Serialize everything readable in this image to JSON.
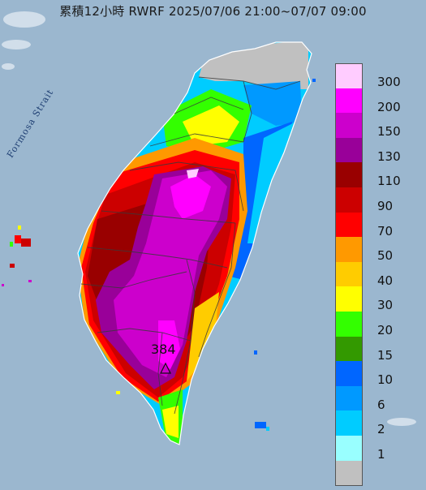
{
  "title": "累積12小時 RWRF 2025/07/06 21:00~07/07 09:00",
  "strait_label": "Formosa Strait",
  "max_marker": {
    "value": "384",
    "icon": "triangle-marker-icon"
  },
  "legend": [
    {
      "label": "300",
      "color": "#ffccff"
    },
    {
      "label": "200",
      "color": "#ff00ff"
    },
    {
      "label": "150",
      "color": "#cc00cc"
    },
    {
      "label": "130",
      "color": "#990099"
    },
    {
      "label": "110",
      "color": "#990000"
    },
    {
      "label": "90",
      "color": "#cc0000"
    },
    {
      "label": "70",
      "color": "#ff0000"
    },
    {
      "label": "50",
      "color": "#ff9900"
    },
    {
      "label": "40",
      "color": "#ffcc00"
    },
    {
      "label": "30",
      "color": "#ffff00"
    },
    {
      "label": "20",
      "color": "#33ff00"
    },
    {
      "label": "15",
      "color": "#339900"
    },
    {
      "label": "10",
      "color": "#0066ff"
    },
    {
      "label": "6",
      "color": "#0099ff"
    },
    {
      "label": "2",
      "color": "#00ccff"
    },
    {
      "label": "1",
      "color": "#99ffff"
    },
    {
      "label": "",
      "color": "#c0c0c0"
    }
  ],
  "colors": {
    "sea": "#9bb7cf",
    "land_dry": "#c0c0c0",
    "county_border": "#3a3a3a"
  }
}
